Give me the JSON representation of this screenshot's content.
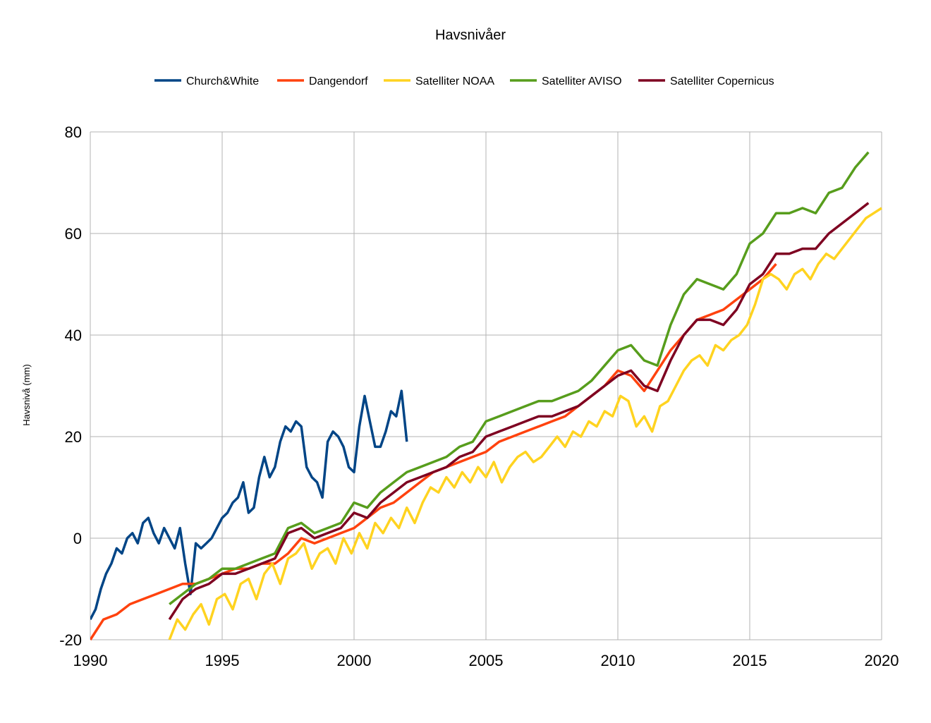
{
  "chart_data": {
    "type": "line",
    "title": "Havsnivåer",
    "xlabel": "",
    "ylabel": "Havsnivå (mm)",
    "xlim": [
      1990,
      2020
    ],
    "ylim": [
      -20,
      80
    ],
    "x_ticks": [
      "1990",
      "1995",
      "2000",
      "2005",
      "2010",
      "2015",
      "2020"
    ],
    "y_ticks": [
      "80",
      "60",
      "40",
      "20",
      "0",
      "-20"
    ],
    "grid": true,
    "legend": "top",
    "series": [
      {
        "name": "Church&White",
        "color": "#004586",
        "x": [
          1990.0,
          1990.2,
          1990.4,
          1990.6,
          1990.8,
          1991.0,
          1991.2,
          1991.4,
          1991.6,
          1991.8,
          1992.0,
          1992.2,
          1992.4,
          1992.6,
          1992.8,
          1993.0,
          1993.2,
          1993.4,
          1993.6,
          1993.8,
          1994.0,
          1994.2,
          1994.4,
          1994.6,
          1994.8,
          1995.0,
          1995.2,
          1995.4,
          1995.6,
          1995.8,
          1996.0,
          1996.2,
          1996.4,
          1996.6,
          1996.8,
          1997.0,
          1997.2,
          1997.4,
          1997.6,
          1997.8,
          1998.0,
          1998.2,
          1998.4,
          1998.6,
          1998.8,
          1999.0,
          1999.2,
          1999.4,
          1999.6,
          1999.8,
          2000.0,
          2000.2,
          2000.4,
          2000.6,
          2000.8,
          2001.0,
          2001.2,
          2001.4,
          2001.6,
          2001.8,
          2002.0
        ],
        "values": [
          -16,
          -14,
          -10,
          -7,
          -5,
          -2,
          -3,
          0,
          1,
          -1,
          3,
          4,
          1,
          -1,
          2,
          0,
          -2,
          2,
          -5,
          -11,
          -1,
          -2,
          -1,
          0,
          2,
          4,
          5,
          7,
          8,
          11,
          5,
          6,
          12,
          16,
          12,
          14,
          19,
          22,
          21,
          23,
          22,
          14,
          12,
          11,
          8,
          19,
          21,
          20,
          18,
          14,
          13,
          22,
          28,
          23,
          18,
          18,
          21,
          25,
          24,
          29,
          19
        ]
      },
      {
        "name": "Dangendorf",
        "color": "#ff420e",
        "x": [
          1990.0,
          1990.5,
          1991.0,
          1991.5,
          1992.0,
          1992.5,
          1993.0,
          1993.5,
          1994.0,
          1994.5,
          1995.0,
          1995.5,
          1996.0,
          1996.5,
          1997.0,
          1997.5,
          1998.0,
          1998.5,
          1999.0,
          1999.5,
          2000.0,
          2000.5,
          2001.0,
          2001.5,
          2002.0,
          2002.5,
          2003.0,
          2003.5,
          2004.0,
          2004.5,
          2005.0,
          2005.5,
          2006.0,
          2006.5,
          2007.0,
          2007.5,
          2008.0,
          2008.5,
          2009.0,
          2009.5,
          2010.0,
          2010.5,
          2011.0,
          2011.5,
          2012.0,
          2012.5,
          2013.0,
          2013.5,
          2014.0,
          2014.5,
          2015.0,
          2015.5,
          2016.0
        ],
        "values": [
          -20,
          -16,
          -15,
          -13,
          -12,
          -11,
          -10,
          -9,
          -9,
          -8,
          -7,
          -6,
          -6,
          -5,
          -5,
          -3,
          0,
          -1,
          0,
          1,
          2,
          4,
          6,
          7,
          9,
          11,
          13,
          14,
          15,
          16,
          17,
          19,
          20,
          21,
          22,
          23,
          24,
          26,
          28,
          30,
          33,
          32,
          29,
          33,
          37,
          40,
          43,
          44,
          45,
          47,
          49,
          51,
          54
        ]
      },
      {
        "name": "Satelliter NOAA",
        "color": "#ffd320",
        "x": [
          1993.0,
          1993.3,
          1993.6,
          1993.9,
          1994.2,
          1994.5,
          1994.8,
          1995.1,
          1995.4,
          1995.7,
          1996.0,
          1996.3,
          1996.6,
          1996.9,
          1997.2,
          1997.5,
          1997.8,
          1998.1,
          1998.4,
          1998.7,
          1999.0,
          1999.3,
          1999.6,
          1999.9,
          2000.2,
          2000.5,
          2000.8,
          2001.1,
          2001.4,
          2001.7,
          2002.0,
          2002.3,
          2002.6,
          2002.9,
          2003.2,
          2003.5,
          2003.8,
          2004.1,
          2004.4,
          2004.7,
          2005.0,
          2005.3,
          2005.6,
          2005.9,
          2006.2,
          2006.5,
          2006.8,
          2007.1,
          2007.4,
          2007.7,
          2008.0,
          2008.3,
          2008.6,
          2008.9,
          2009.2,
          2009.5,
          2009.8,
          2010.1,
          2010.4,
          2010.7,
          2011.0,
          2011.3,
          2011.6,
          2011.9,
          2012.2,
          2012.5,
          2012.8,
          2013.1,
          2013.4,
          2013.7,
          2014.0,
          2014.3,
          2014.6,
          2014.9,
          2015.2,
          2015.5,
          2015.8,
          2016.1,
          2016.4,
          2016.7,
          2017.0,
          2017.3,
          2017.6,
          2017.9,
          2018.2,
          2018.5,
          2018.8,
          2019.1,
          2019.4,
          2019.7,
          2020.0
        ],
        "values": [
          -20,
          -16,
          -18,
          -15,
          -13,
          -17,
          -12,
          -11,
          -14,
          -9,
          -8,
          -12,
          -7,
          -5,
          -9,
          -4,
          -3,
          -1,
          -6,
          -3,
          -2,
          -5,
          0,
          -3,
          1,
          -2,
          3,
          1,
          4,
          2,
          6,
          3,
          7,
          10,
          9,
          12,
          10,
          13,
          11,
          14,
          12,
          15,
          11,
          14,
          16,
          17,
          15,
          16,
          18,
          20,
          18,
          21,
          20,
          23,
          22,
          25,
          24,
          28,
          27,
          22,
          24,
          21,
          26,
          27,
          30,
          33,
          35,
          36,
          34,
          38,
          37,
          39,
          40,
          42,
          46,
          51,
          52,
          51,
          49,
          52,
          53,
          51,
          54,
          56,
          55,
          57,
          59,
          61,
          63,
          64,
          65
        ]
      },
      {
        "name": "Satelliter AVISO",
        "color": "#579d1c",
        "x": [
          1993.0,
          1993.5,
          1994.0,
          1994.5,
          1995.0,
          1995.5,
          1996.0,
          1996.5,
          1997.0,
          1997.5,
          1998.0,
          1998.5,
          1999.0,
          1999.5,
          2000.0,
          2000.5,
          2001.0,
          2001.5,
          2002.0,
          2002.5,
          2003.0,
          2003.5,
          2004.0,
          2004.5,
          2005.0,
          2005.5,
          2006.0,
          2006.5,
          2007.0,
          2007.5,
          2008.0,
          2008.5,
          2009.0,
          2009.5,
          2010.0,
          2010.5,
          2011.0,
          2011.5,
          2012.0,
          2012.5,
          2013.0,
          2013.5,
          2014.0,
          2014.5,
          2015.0,
          2015.5,
          2016.0,
          2016.5,
          2017.0,
          2017.5,
          2018.0,
          2018.5,
          2019.0,
          2019.5
        ],
        "values": [
          -13,
          -11,
          -9,
          -8,
          -6,
          -6,
          -5,
          -4,
          -3,
          2,
          3,
          1,
          2,
          3,
          7,
          6,
          9,
          11,
          13,
          14,
          15,
          16,
          18,
          19,
          23,
          24,
          25,
          26,
          27,
          27,
          28,
          29,
          31,
          34,
          37,
          38,
          35,
          34,
          42,
          48,
          51,
          50,
          49,
          52,
          58,
          60,
          64,
          64,
          65,
          64,
          68,
          69,
          73,
          76
        ]
      },
      {
        "name": "Satelliter Copernicus",
        "color": "#7e0021",
        "x": [
          1993.0,
          1993.5,
          1994.0,
          1994.5,
          1995.0,
          1995.5,
          1996.0,
          1996.5,
          1997.0,
          1997.5,
          1998.0,
          1998.5,
          1999.0,
          1999.5,
          2000.0,
          2000.5,
          2001.0,
          2001.5,
          2002.0,
          2002.5,
          2003.0,
          2003.5,
          2004.0,
          2004.5,
          2005.0,
          2005.5,
          2006.0,
          2006.5,
          2007.0,
          2007.5,
          2008.0,
          2008.5,
          2009.0,
          2009.5,
          2010.0,
          2010.5,
          2011.0,
          2011.5,
          2012.0,
          2012.5,
          2013.0,
          2013.5,
          2014.0,
          2014.5,
          2015.0,
          2015.5,
          2016.0,
          2016.5,
          2017.0,
          2017.5,
          2018.0,
          2018.5,
          2019.0,
          2019.5
        ],
        "values": [
          -16,
          -12,
          -10,
          -9,
          -7,
          -7,
          -6,
          -5,
          -4,
          1,
          2,
          0,
          1,
          2,
          5,
          4,
          7,
          9,
          11,
          12,
          13,
          14,
          16,
          17,
          20,
          21,
          22,
          23,
          24,
          24,
          25,
          26,
          28,
          30,
          32,
          33,
          30,
          29,
          35,
          40,
          43,
          43,
          42,
          45,
          50,
          52,
          56,
          56,
          57,
          57,
          60,
          62,
          64,
          66
        ]
      }
    ]
  }
}
